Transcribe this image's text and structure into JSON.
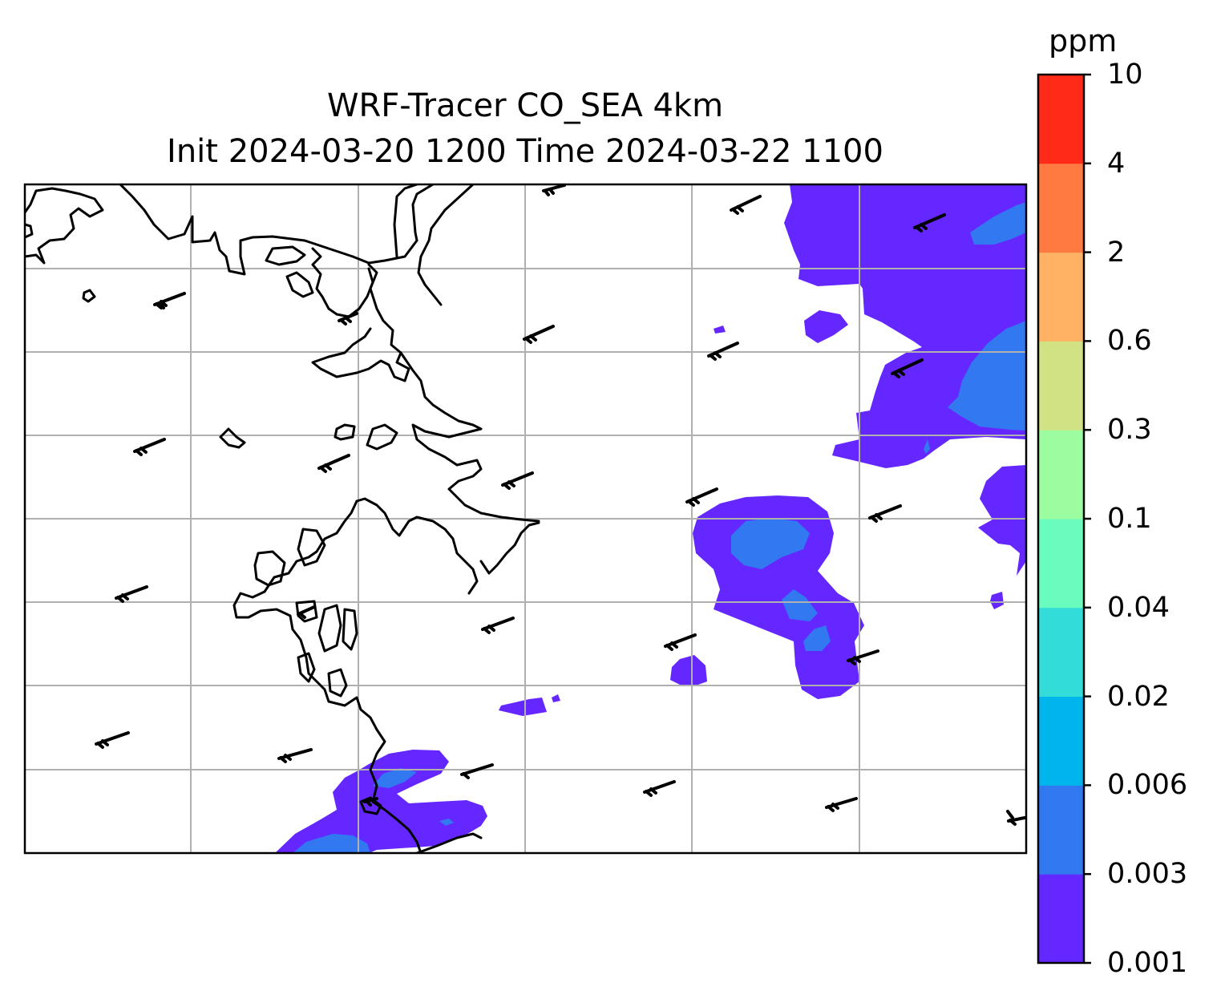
{
  "figure": {
    "title_line1": "WRF-Tracer CO_SEA 4km",
    "title_line2": "Init 2024-03-20 1200 Time 2024-03-22 1100"
  },
  "colorbar": {
    "unit": "ppm",
    "tick_labels": [
      "0.001",
      "0.003",
      "0.006",
      "0.02",
      "0.04",
      "0.1",
      "0.3",
      "0.6",
      "2",
      "4",
      "10"
    ],
    "colors": [
      "#6527ff",
      "#3278f0",
      "#00b4ec",
      "#32dcd8",
      "#6afcbe",
      "#9cfca0",
      "#d0e283",
      "#ffb264",
      "#ff7a40",
      "#ff2a18"
    ]
  },
  "map": {
    "gridlines": true,
    "frame_color": "#000000",
    "grid_color": "#b0b0b0",
    "coastline_color": "#000000",
    "wind_barb_count": 26
  }
}
